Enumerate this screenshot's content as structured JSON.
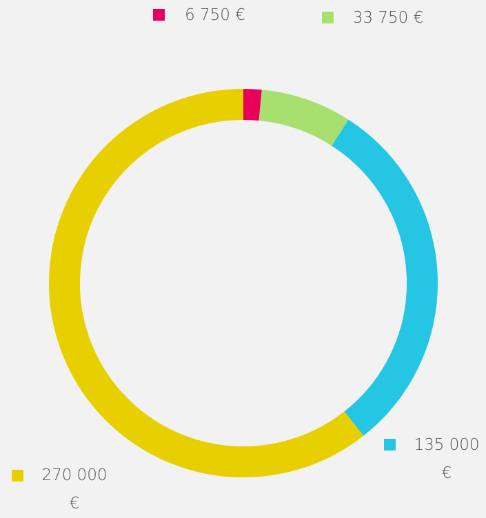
{
  "chart_data": {
    "type": "donut",
    "values": [
      6750,
      33750,
      135000,
      270000
    ],
    "value_labels": [
      "6 750 €",
      "33 750 €",
      "135 000 €",
      "270 000 €"
    ],
    "colors": [
      "#e8005a",
      "#a8e070",
      "#25c6e4",
      "#e8d000"
    ],
    "legend": "labels-around"
  }
}
